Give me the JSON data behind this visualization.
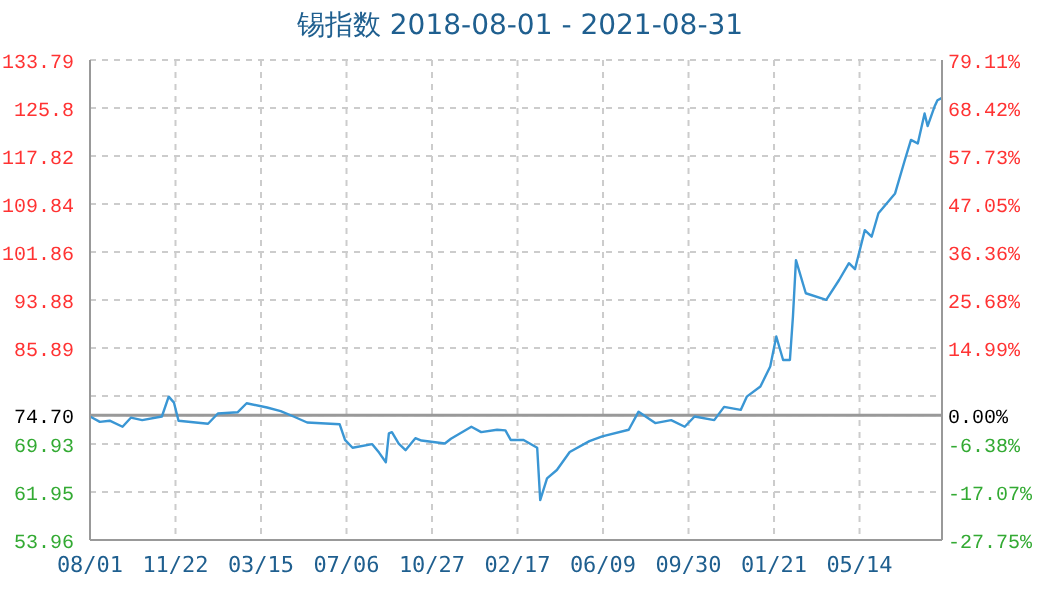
{
  "chart_data": {
    "type": "line",
    "title": "锡指数 2018-08-01 - 2021-08-31",
    "color": "#3a96d4",
    "grid": true,
    "x": [
      "2018-08-01",
      "2018-08-14",
      "2018-08-27",
      "2018-09-13",
      "2018-09-24",
      "2018-10-09",
      "2018-11-04",
      "2018-11-13",
      "2018-11-20",
      "2018-11-26",
      "2019-01-04",
      "2019-01-17",
      "2019-02-12",
      "2019-02-24",
      "2019-03-23",
      "2019-04-10",
      "2019-04-27",
      "2019-05-15",
      "2019-06-27",
      "2019-07-04",
      "2019-07-14",
      "2019-08-09",
      "2019-08-18",
      "2019-08-27",
      "2019-08-31",
      "2019-09-04",
      "2019-09-13",
      "2019-09-22",
      "2019-10-05",
      "2019-10-13",
      "2019-11-13",
      "2019-11-21",
      "2019-12-18",
      "2019-12-31",
      "2020-01-21",
      "2020-02-01",
      "2020-02-08",
      "2020-02-25",
      "2020-03-14",
      "2020-03-18",
      "2020-03-27",
      "2020-04-09",
      "2020-04-26",
      "2020-05-22",
      "2020-06-08",
      "2020-07-13",
      "2020-07-26",
      "2020-08-17",
      "2020-09-07",
      "2020-09-25",
      "2020-10-08",
      "2020-11-03",
      "2020-11-16",
      "2020-12-08",
      "2020-12-16",
      "2021-01-03",
      "2021-01-16",
      "2021-01-24",
      "2021-02-02",
      "2021-02-11",
      "2021-02-15",
      "2021-02-19",
      "2021-03-04",
      "2021-03-31",
      "2021-04-17",
      "2021-04-30",
      "2021-05-08",
      "2021-05-21",
      "2021-05-30",
      "2021-06-08",
      "2021-06-30",
      "2021-07-13",
      "2021-07-21",
      "2021-07-30",
      "2021-08-08",
      "2021-08-12",
      "2021-08-21",
      "2021-08-25",
      "2021-08-31"
    ],
    "values": [
      74.5,
      73.6,
      73.8,
      72.8,
      74.3,
      73.9,
      74.5,
      77.8,
      76.8,
      73.8,
      73.3,
      75.0,
      75.2,
      76.7,
      76.0,
      75.4,
      74.5,
      73.5,
      73.2,
      70.6,
      69.3,
      69.9,
      68.5,
      66.9,
      71.7,
      71.9,
      70.0,
      68.9,
      70.9,
      70.5,
      70.0,
      70.8,
      72.8,
      71.9,
      72.3,
      72.2,
      70.6,
      70.6,
      69.3,
      60.6,
      64.2,
      65.6,
      68.6,
      70.4,
      71.2,
      72.3,
      75.3,
      73.4,
      73.9,
      72.8,
      74.5,
      73.9,
      76.1,
      75.6,
      77.8,
      79.5,
      82.8,
      87.8,
      83.9,
      83.9,
      91.1,
      100.5,
      95.0,
      93.9,
      97.2,
      100.0,
      99.0,
      105.5,
      104.4,
      108.3,
      111.6,
      117.2,
      120.5,
      119.9,
      124.9,
      122.8,
      126.0,
      127.1,
      127.5
    ],
    "xlim": [
      "2018-08-01",
      "2021-08-31"
    ],
    "xticks": [
      {
        "value": "2018-08-01",
        "label": "08/01"
      },
      {
        "value": "2018-11-22",
        "label": "11/22"
      },
      {
        "value": "2019-03-15",
        "label": "03/15"
      },
      {
        "value": "2019-07-06",
        "label": "07/06"
      },
      {
        "value": "2019-10-27",
        "label": "10/27"
      },
      {
        "value": "2020-02-17",
        "label": "02/17"
      },
      {
        "value": "2020-06-09",
        "label": "06/09"
      },
      {
        "value": "2020-09-30",
        "label": "09/30"
      },
      {
        "value": "2021-01-21",
        "label": "01/21"
      },
      {
        "value": "2021-05-14",
        "label": "05/14"
      }
    ],
    "ylim": [
      53.96,
      133.79
    ],
    "yticks": [
      53.96,
      61.95,
      69.93,
      {
        "value": 74.7,
        "label": "74.70"
      },
      {
        "value": 77.91,
        "label": null
      },
      85.89,
      93.88,
      101.86,
      109.84,
      117.82,
      125.8,
      133.79
    ],
    "y2lim": [
      -27.75,
      79.11
    ],
    "y2ticks": [
      {
        "value": -27.75,
        "label": "-27.75%"
      },
      {
        "value": -17.07,
        "label": "-17.07%"
      },
      {
        "value": -6.38,
        "label": "-6.38%"
      },
      {
        "value": 0,
        "label": "0.00%"
      },
      {
        "value": 14.99,
        "label": "14.99%"
      },
      {
        "value": 25.68,
        "label": "25.68%"
      },
      {
        "value": 36.36,
        "label": "36.36%"
      },
      {
        "value": 47.05,
        "label": "47.05%"
      },
      {
        "value": 57.73,
        "label": "57.73%"
      },
      {
        "value": 68.42,
        "label": "68.42%"
      },
      {
        "value": 79.11,
        "label": "79.11%"
      }
    ],
    "ref_lines": [
      {
        "axis": "y",
        "value": 74.7,
        "color": "#999999"
      }
    ]
  }
}
